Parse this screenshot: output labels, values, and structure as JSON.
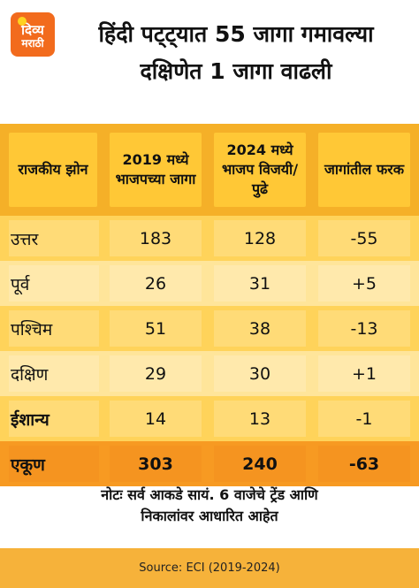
{
  "brand": {
    "logo_line1": "दिव्य",
    "logo_line2": "मराठी",
    "accent": "#f26b1d"
  },
  "headline": {
    "line1": "हिंदी पट्ट्यात 55 जागा गमावल्या",
    "line2": "दक्षिणेत 1 जागा वाढली"
  },
  "table": {
    "headers": [
      "राजकीय झोन",
      "2019 मध्ये भाजपच्या जागा",
      "2024 मध्ये भाजप विजयी/पुढे",
      "जागांतील फरक"
    ],
    "rows": [
      {
        "zone": "उत्तर",
        "y2019": "183",
        "y2024": "128",
        "diff": "-55"
      },
      {
        "zone": "पूर्व",
        "y2019": "26",
        "y2024": "31",
        "diff": "+5"
      },
      {
        "zone": "पश्चिम",
        "y2019": "51",
        "y2024": "38",
        "diff": "-13"
      },
      {
        "zone": "दक्षिण",
        "y2019": "29",
        "y2024": "30",
        "diff": "+1"
      },
      {
        "zone": "ईशान्य",
        "y2019": "14",
        "y2024": "13",
        "diff": "-1"
      }
    ],
    "total": {
      "zone": "एकूण",
      "y2019": "303",
      "y2024": "240",
      "diff": "-63"
    }
  },
  "note": {
    "line1": "नोटः सर्व आकडे सायं. 6 वाजेचे ट्रेंड आणि",
    "line2": "निकालांवर आधारित आहेत"
  },
  "source": "Source: ECI (2019-2024)"
}
